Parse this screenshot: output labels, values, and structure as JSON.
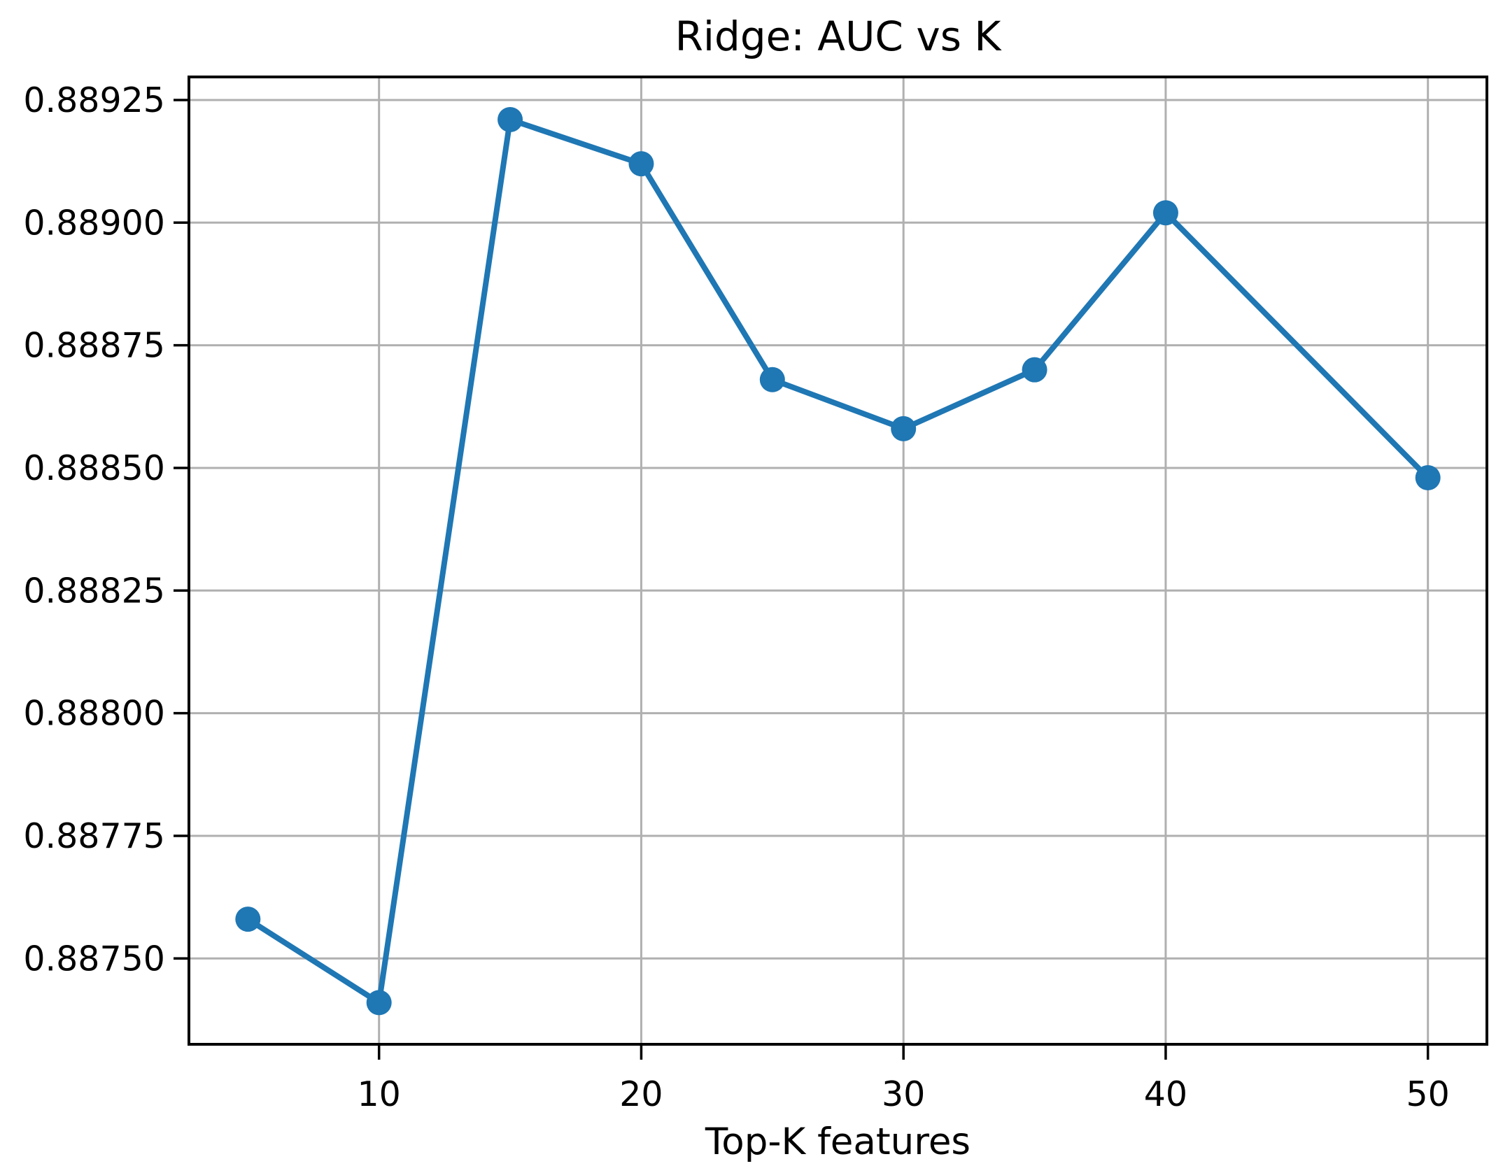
{
  "chart_data": {
    "type": "line",
    "title": "Ridge: AUC vs K",
    "xlabel": "Top-K features",
    "ylabel": "",
    "x": [
      5,
      10,
      15,
      20,
      25,
      30,
      35,
      40,
      50
    ],
    "values": [
      0.88758,
      0.88741,
      0.88921,
      0.88912,
      0.88868,
      0.88858,
      0.8887,
      0.88902,
      0.88848
    ],
    "xlim": [
      2.75,
      52.25
    ],
    "ylim": [
      0.887325,
      0.889297
    ],
    "xticks": [
      10,
      20,
      30,
      40,
      50
    ],
    "yticks": [
      0.8875,
      0.88775,
      0.888,
      0.88825,
      0.8885,
      0.88875,
      0.889,
      0.88925
    ],
    "ytick_decimals": 5,
    "grid": true,
    "legend": false,
    "marker": "o",
    "line_color": "#1f77b4",
    "grid_color": "#b0b0b0",
    "spine_color": "#000000",
    "background_color": "#ffffff"
  }
}
